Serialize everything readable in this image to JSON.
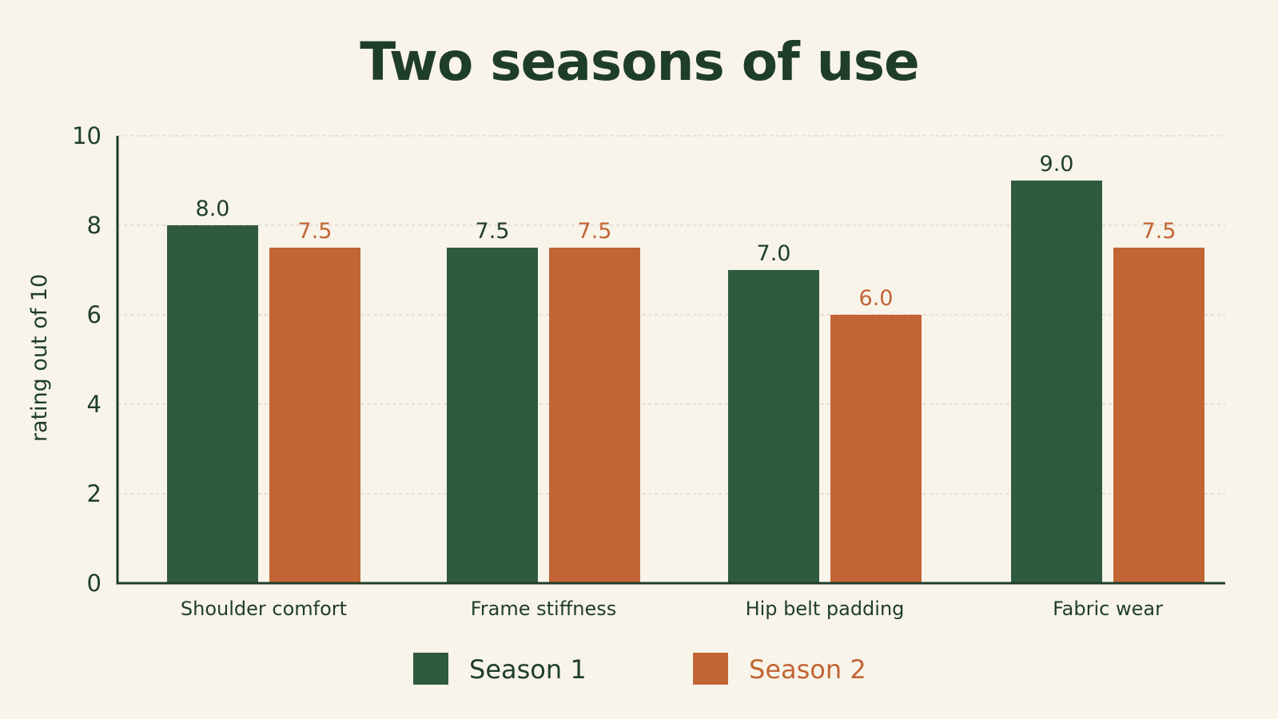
{
  "chart_data": {
    "type": "bar",
    "title": "Two seasons of use",
    "xlabel": "",
    "ylabel": "rating out of 10",
    "ylim": [
      0,
      10
    ],
    "yticks": [
      0,
      2,
      4,
      6,
      8,
      10
    ],
    "grid": true,
    "legend_position": "bottom",
    "categories": [
      "Shoulder comfort",
      "Frame stiffness",
      "Hip belt padding",
      "Fabric wear"
    ],
    "series": [
      {
        "name": "Season 1",
        "color": "#2f5a3e",
        "values": [
          8.0,
          7.5,
          7.0,
          9.0
        ],
        "labels": [
          "8.0",
          "7.5",
          "7.0",
          "9.0"
        ]
      },
      {
        "name": "Season 2",
        "color": "#c26534",
        "values": [
          7.5,
          7.5,
          6.0,
          7.5
        ],
        "labels": [
          "7.5",
          "7.5",
          "6.0",
          "7.5"
        ]
      }
    ]
  }
}
